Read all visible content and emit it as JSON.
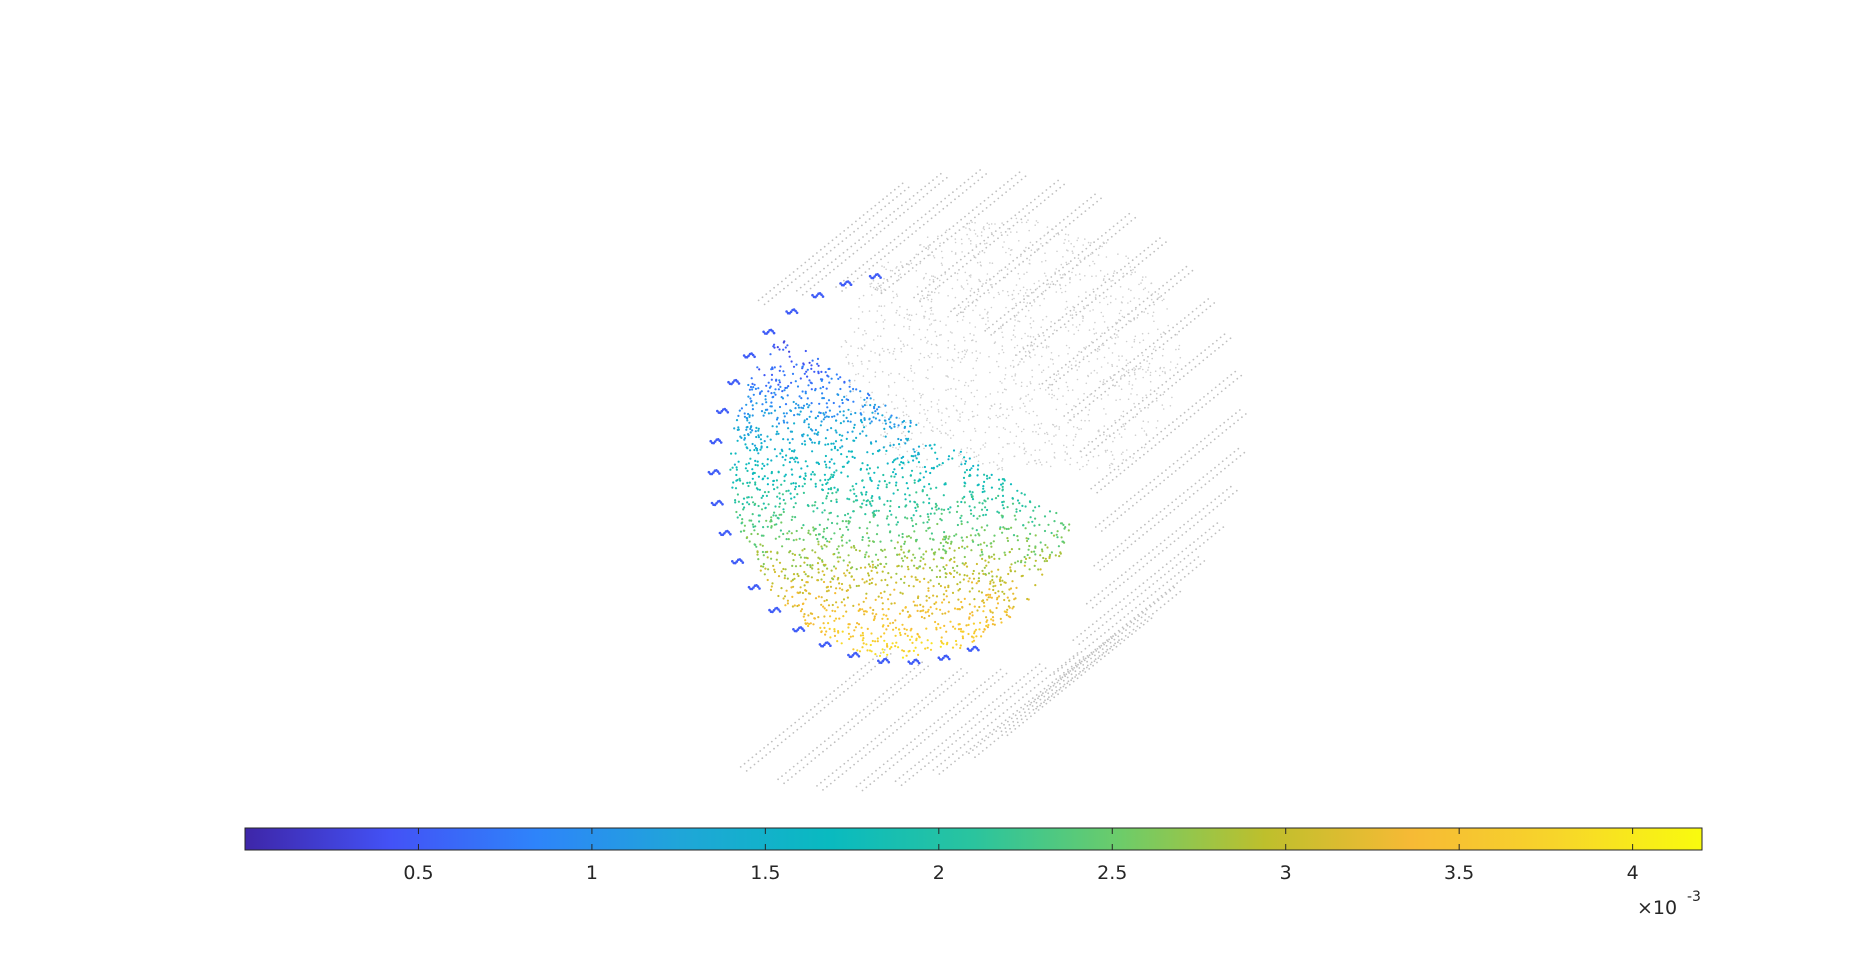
{
  "chart_data": {
    "type": "scatter",
    "title": "",
    "colormap": "parula",
    "colormap_stops": [
      "#3e26a8",
      "#4352f6",
      "#2e84fa",
      "#1fa6d8",
      "#09bac0",
      "#2ac49e",
      "#6ccc6a",
      "#bebf2c",
      "#f6ba35",
      "#f7d52a",
      "#f9fb0e"
    ],
    "background_point_color": "#bfbfbf",
    "colorbar": {
      "orientation": "horizontal",
      "location": "bottom",
      "clim": [
        0.0,
        4.2
      ],
      "ticks": [
        0.5,
        1,
        1.5,
        2,
        2.5,
        3,
        3.5,
        4
      ],
      "tick_labels": [
        "0.5",
        "1",
        "1.5",
        "2",
        "2.5",
        "3",
        "3.5",
        "4"
      ],
      "exponent_base": "×10",
      "exponent_power": "-3"
    },
    "grid": false,
    "legend": "none"
  }
}
